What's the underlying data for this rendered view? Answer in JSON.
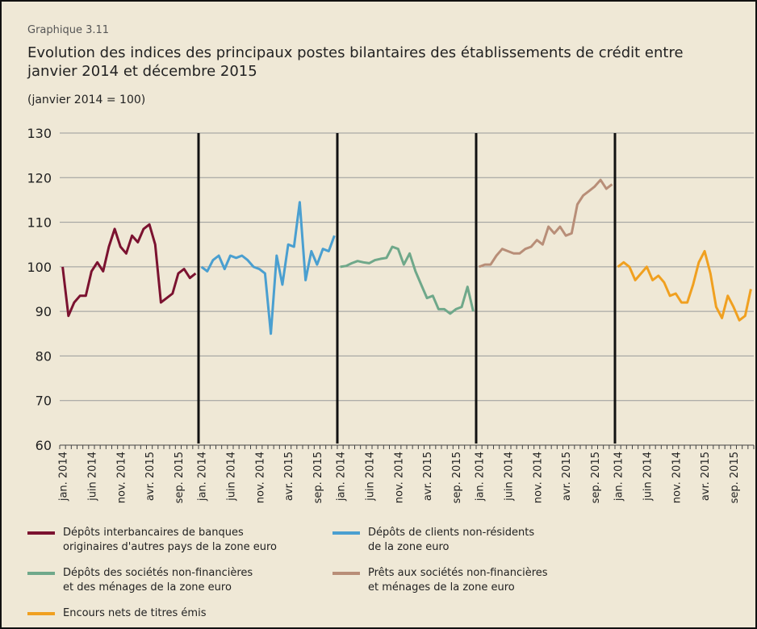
{
  "chart_data": {
    "type": "line",
    "kicker": "Graphique 3.11",
    "title": "Evolution des indices des principaux postes bilantaires des établissements de crédit entre\njanvier 2014 et décembre 2015",
    "subtitle": "(janvier 2014 = 100)",
    "categories": [
      "jan. 2014",
      null,
      null,
      null,
      null,
      "juin 2014",
      null,
      null,
      null,
      null,
      "nov. 2014",
      null,
      null,
      null,
      null,
      "avr. 2015",
      null,
      null,
      null,
      null,
      "sep. 2015",
      null,
      null,
      null
    ],
    "ylim": [
      60,
      130
    ],
    "yticks": [
      60,
      70,
      80,
      90,
      100,
      110,
      120,
      130
    ],
    "grid": true,
    "series": [
      {
        "name": "Dépôts interbancaires de banques\noriginaires d'autres pays de la zone euro",
        "color": "#7b1230",
        "values": [
          100,
          89,
          92,
          93.5,
          93.5,
          99,
          101,
          99,
          104.5,
          108.5,
          104.5,
          103,
          107,
          105.5,
          108.5,
          109.5,
          105,
          92,
          93,
          94,
          98.5,
          99.5,
          97.5,
          98.5
        ]
      },
      {
        "name": "Dépôts de clients non-résidents\nde la zone euro",
        "color": "#4a9fd0",
        "values": [
          100,
          99,
          101.5,
          102.5,
          99.5,
          102.5,
          102,
          102.5,
          101.5,
          100,
          99.5,
          98.5,
          85,
          102.5,
          96,
          105,
          104.5,
          114.5,
          97,
          103.5,
          100.5,
          104,
          103.5,
          107
        ]
      },
      {
        "name": "Dépôts des sociétés non-financières\net des ménages de la zone euro",
        "color": "#6fa88a",
        "values": [
          100,
          100.2,
          100.8,
          101.3,
          101,
          100.8,
          101.5,
          101.8,
          102,
          104.5,
          104,
          100.5,
          103,
          99,
          96,
          93,
          93.5,
          90.5,
          90.5,
          89.5,
          90.5,
          91,
          95.5,
          90
        ]
      },
      {
        "name": "Prêts aux sociétés non-financières\net ménages de la zone euro",
        "color": "#b88e78",
        "values": [
          100,
          100.5,
          100.5,
          102.5,
          104,
          103.5,
          103,
          103,
          104,
          104.5,
          106,
          105,
          109,
          107.5,
          109,
          107,
          107.5,
          114,
          116,
          117,
          118,
          119.5,
          117.5,
          118.5
        ]
      },
      {
        "name": "Encours nets de titres émis",
        "color": "#f0a020",
        "values": [
          100,
          101,
          100,
          97,
          98.5,
          100,
          97,
          98,
          96.5,
          93.5,
          94,
          92,
          92,
          96,
          101,
          103.5,
          98.5,
          91,
          88.5,
          93.5,
          91,
          88,
          89,
          95
        ]
      }
    ]
  }
}
